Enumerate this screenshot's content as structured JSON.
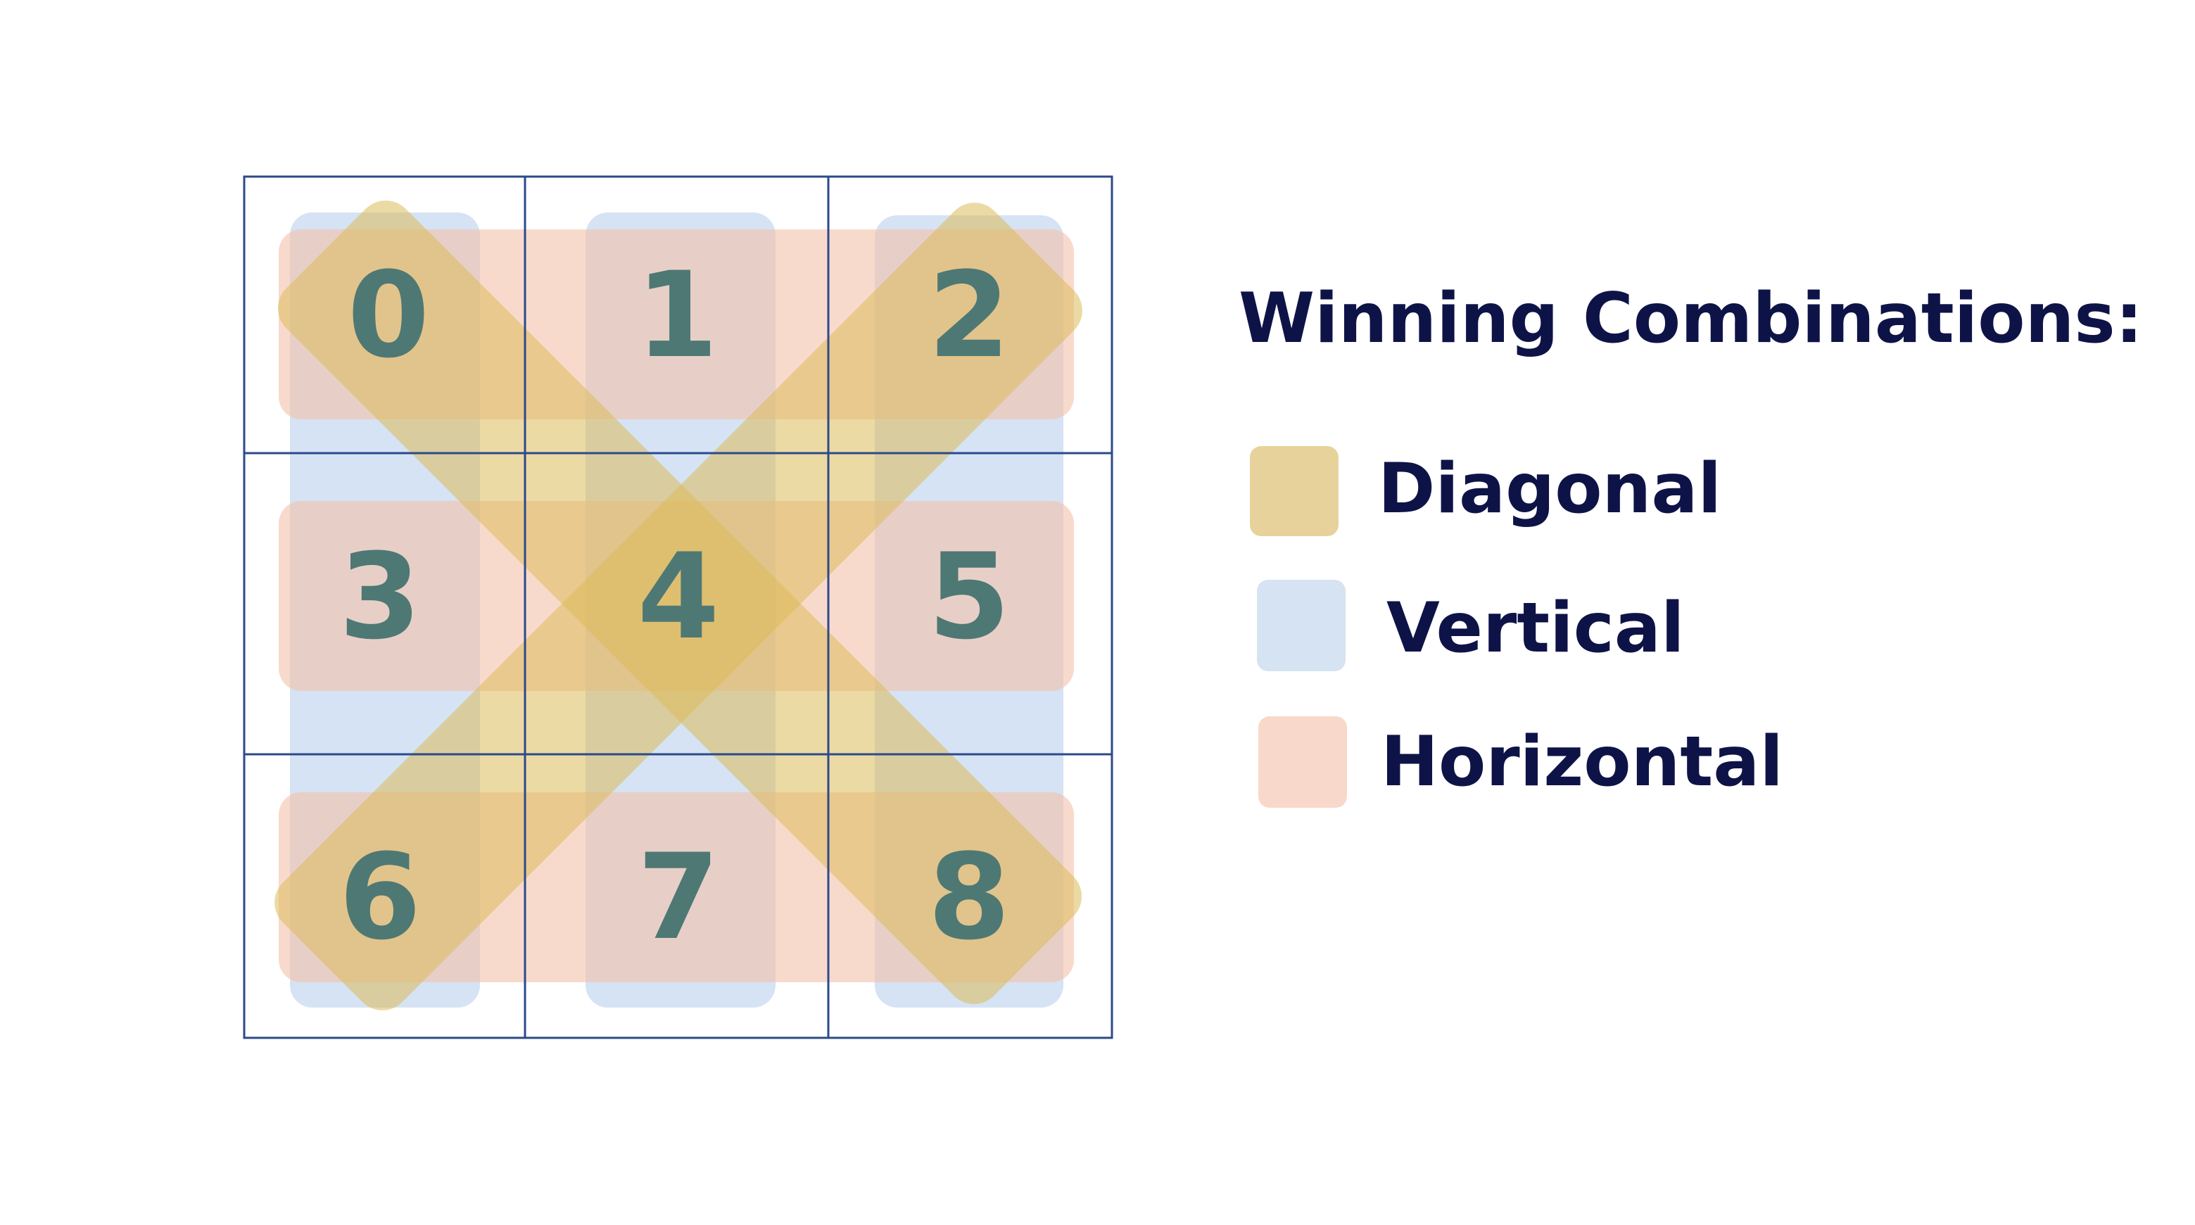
{
  "board": {
    "cells": [
      "0",
      "1",
      "2",
      "3",
      "4",
      "5",
      "6",
      "7",
      "8"
    ],
    "grid_color": "#2b4a8a",
    "number_color": "#4e7874",
    "winning_lines": {
      "diagonal": [
        [
          0,
          4,
          8
        ],
        [
          2,
          4,
          6
        ]
      ],
      "vertical": [
        [
          0,
          3,
          6
        ],
        [
          1,
          4,
          7
        ],
        [
          2,
          5,
          8
        ]
      ],
      "horizontal": [
        [
          0,
          1,
          2
        ],
        [
          3,
          4,
          5
        ],
        [
          6,
          7,
          8
        ]
      ]
    }
  },
  "legend": {
    "title": "Winning Combinations:",
    "title_color": "#0e1347",
    "items": [
      {
        "key": "diagonal",
        "label": "Diagonal",
        "color": "#e6d29a",
        "overlay_color": "#dcbc5a"
      },
      {
        "key": "vertical",
        "label": "Vertical",
        "color": "#d5e3f3",
        "overlay_color": "#d3e2f3"
      },
      {
        "key": "horizontal",
        "label": "Horizontal",
        "color": "#f8d8ca",
        "overlay_color": "#f4c2aa"
      }
    ]
  }
}
